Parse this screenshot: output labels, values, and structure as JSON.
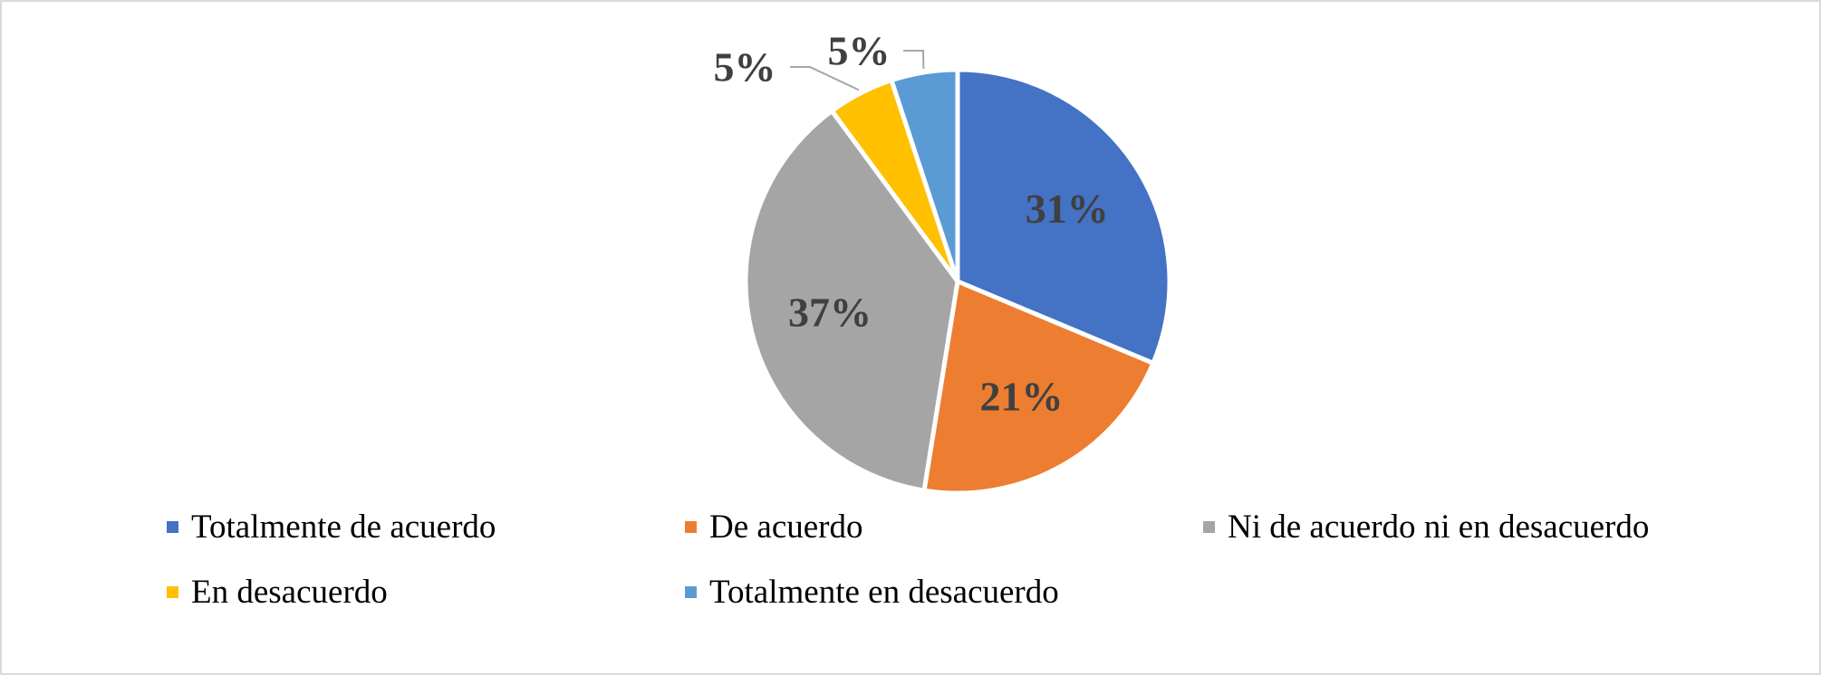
{
  "chart_data": {
    "type": "pie",
    "categories": [
      "Totalmente de acuerdo",
      "De acuerdo",
      "Ni de acuerdo ni en desacuerdo",
      "En desacuerdo",
      "Totalmente en desacuerdo"
    ],
    "values": [
      31,
      21,
      37,
      5,
      5
    ],
    "data_labels": [
      "31%",
      "21%",
      "37%",
      "5%",
      "5%"
    ],
    "colors": [
      "#4472c4",
      "#ed7d31",
      "#a5a5a5",
      "#ffc000",
      "#5b9bd5"
    ],
    "title": "",
    "legend_placement": "bottom",
    "start_angle": "12 o'clock, clockwise"
  }
}
